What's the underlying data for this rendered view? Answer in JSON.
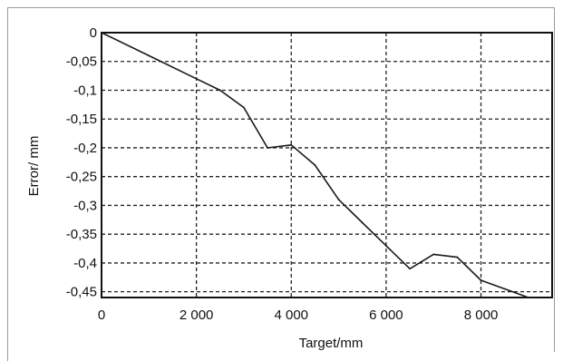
{
  "chart_data": {
    "type": "line",
    "title": "",
    "xlabel": "Target/mm",
    "ylabel": "Error/ mm",
    "xlim": [
      0,
      9500
    ],
    "ylim": [
      -0.46,
      0
    ],
    "grid": true,
    "legend": "none",
    "x_ticks": [
      0,
      2000,
      4000,
      6000,
      8000
    ],
    "x_tick_labels": [
      "0",
      "2 000",
      "4 000",
      "6 000",
      "8 000"
    ],
    "y_ticks": [
      0,
      -0.05,
      -0.1,
      -0.15,
      -0.2,
      -0.25,
      -0.3,
      -0.35,
      -0.4,
      -0.45
    ],
    "y_tick_labels": [
      "0",
      "-0,05",
      "-0,1",
      "-0,15",
      "-0,2",
      "-0,25",
      "-0,3",
      "-0,35",
      "-0,4",
      "-0,45"
    ],
    "series": [
      {
        "x": [
          0,
          1000,
          2000,
          2500,
          3000,
          3500,
          4000,
          4500,
          5000,
          5500,
          6000,
          6500,
          7000,
          7500,
          8000,
          8500,
          9000
        ],
        "y": [
          0,
          -0.04,
          -0.08,
          -0.1,
          -0.13,
          -0.2,
          -0.195,
          -0.23,
          -0.29,
          -0.33,
          -0.37,
          -0.41,
          -0.385,
          -0.39,
          -0.43,
          -0.445,
          -0.46
        ]
      }
    ],
    "colors": {
      "line": "#1a1a1a",
      "grid": "#222222",
      "plot_border": "#111111"
    }
  }
}
